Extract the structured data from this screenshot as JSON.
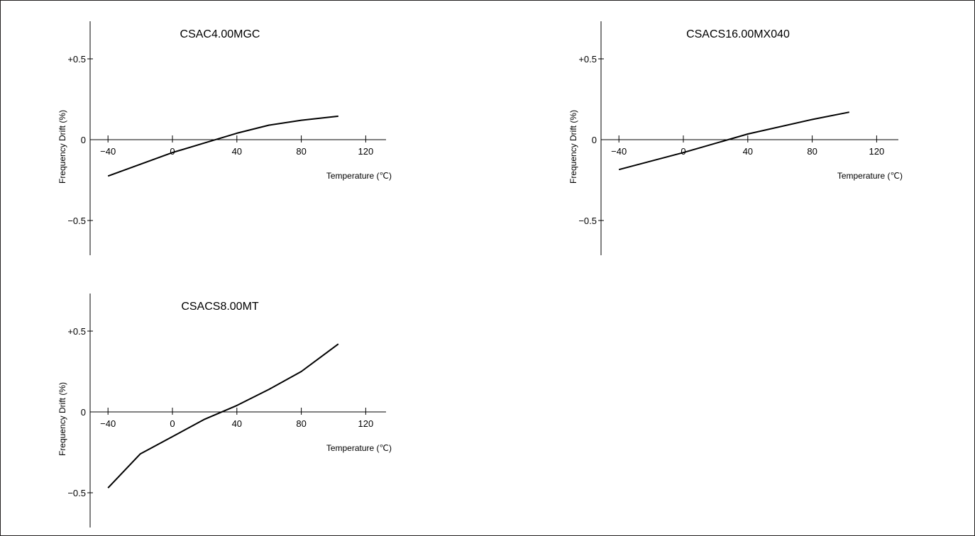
{
  "chart_data": [
    {
      "type": "line",
      "title": "CSAC4.00MGC",
      "xlabel": "Temperature (℃)",
      "ylabel": "Frequency Drift (%)",
      "xlim": [
        -47,
        130
      ],
      "ylim": [
        -0.72,
        0.73
      ],
      "x_ticks": [
        -40,
        0,
        40,
        80,
        120
      ],
      "x_tick_labels": [
        "−40",
        "0",
        "40",
        "80",
        "120"
      ],
      "y_ticks": [
        0.5,
        0,
        -0.5
      ],
      "y_tick_labels": [
        "+0.5",
        "0",
        "−0.5"
      ],
      "grid": false,
      "x": [
        -40,
        0,
        20,
        40,
        60,
        80,
        103
      ],
      "y": [
        -0.225,
        -0.08,
        -0.02,
        0.04,
        0.09,
        0.12,
        0.145
      ]
    },
    {
      "type": "line",
      "title": "CSACS16.00MX040",
      "xlabel": "Temperature (℃)",
      "ylabel": "Frequency Drift (%)",
      "xlim": [
        -47,
        130
      ],
      "ylim": [
        -0.72,
        0.73
      ],
      "x_ticks": [
        -40,
        0,
        40,
        80,
        120
      ],
      "x_tick_labels": [
        "−40",
        "0",
        "40",
        "80",
        "120"
      ],
      "y_ticks": [
        0.5,
        0,
        -0.5
      ],
      "y_tick_labels": [
        "+0.5",
        "0",
        "−0.5"
      ],
      "grid": false,
      "x": [
        -40,
        0,
        40,
        80,
        103
      ],
      "y": [
        -0.185,
        -0.08,
        0.035,
        0.125,
        0.17
      ]
    },
    {
      "type": "line",
      "title": "CSACS8.00MT",
      "xlabel": "Temperature (℃)",
      "ylabel": "Frequency Drift (%)",
      "xlim": [
        -47,
        130
      ],
      "ylim": [
        -0.72,
        0.73
      ],
      "x_ticks": [
        -40,
        0,
        40,
        80,
        120
      ],
      "x_tick_labels": [
        "−40",
        "0",
        "40",
        "80",
        "120"
      ],
      "y_ticks": [
        0.5,
        0,
        -0.5
      ],
      "y_tick_labels": [
        "+0.5",
        "0",
        "−0.5"
      ],
      "grid": false,
      "x": [
        -40,
        -20,
        20,
        40,
        60,
        80,
        103
      ],
      "y": [
        -0.47,
        -0.26,
        -0.045,
        0.04,
        0.14,
        0.25,
        0.42
      ]
    }
  ]
}
